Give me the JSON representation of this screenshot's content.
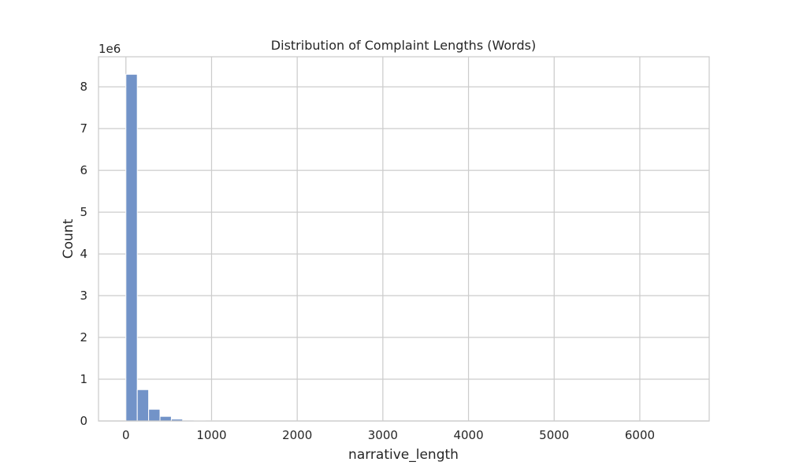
{
  "chart_data": {
    "type": "bar",
    "title": "Distribution of Complaint Lengths (Words)",
    "xlabel": "narrative_length",
    "ylabel": "Count",
    "y_offset_label": "1e6",
    "xlim": [
      -320,
      6810
    ],
    "ylim": [
      0,
      8.72
    ],
    "xticks": [
      0,
      1000,
      2000,
      3000,
      4000,
      5000,
      6000
    ],
    "yticks": [
      0,
      1,
      2,
      3,
      4,
      5,
      6,
      7,
      8
    ],
    "grid": true,
    "legend": "none",
    "bin_width": 132.6,
    "bins": [
      {
        "start": 0,
        "count": 8.3
      },
      {
        "start": 132.6,
        "count": 0.75
      },
      {
        "start": 265.2,
        "count": 0.28
      },
      {
        "start": 397.8,
        "count": 0.11
      },
      {
        "start": 530.4,
        "count": 0.045
      },
      {
        "start": 663.0,
        "count": 0.02
      },
      {
        "start": 795.6,
        "count": 0.01
      },
      {
        "start": 928.2,
        "count": 0.005
      },
      {
        "start": 1060.8,
        "count": 0.003
      },
      {
        "start": 1193.4,
        "count": 0.002
      }
    ],
    "colors": {
      "bar_fill": "#7293c8",
      "bar_edge": "#ffffff",
      "grid": "#cccccc",
      "frame": "#cccccc",
      "text": "#262626"
    }
  }
}
